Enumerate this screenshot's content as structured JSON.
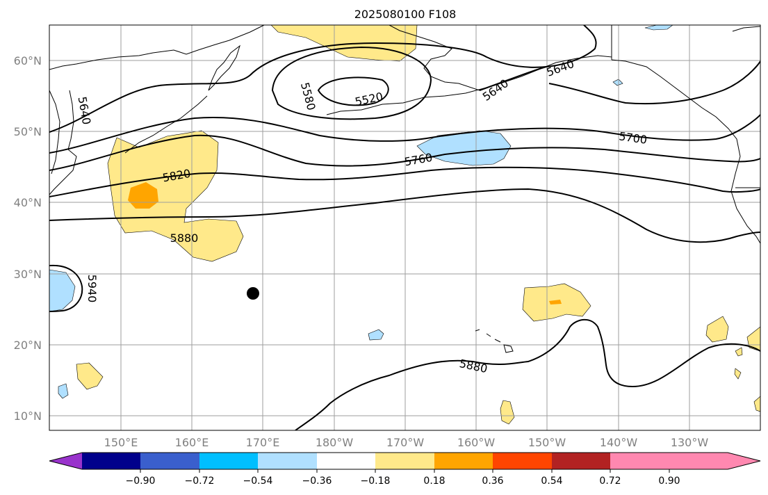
{
  "title": "2025080100 F108",
  "lat_labels": [
    "60°N",
    "50°N",
    "40°N",
    "30°N",
    "20°N",
    "10°N"
  ],
  "lon_labels": [
    "150°E",
    "160°E",
    "170°E",
    "180°W",
    "170°W",
    "160°W",
    "150°W",
    "140°W",
    "130°W"
  ],
  "contour_labels": [
    "5520",
    "5580",
    "5640",
    "5640",
    "5640",
    "5700",
    "5760",
    "5820",
    "5880",
    "5880",
    "5940"
  ],
  "colorbar": {
    "ticks": [
      "−0.90",
      "−0.72",
      "−0.54",
      "−0.36",
      "−0.18",
      "0.18",
      "0.36",
      "0.54",
      "0.72",
      "0.90"
    ],
    "colors": [
      "#9933cc",
      "#00008b",
      "#3a5fcd",
      "#00bfff",
      "#b0e0ff",
      "#ffffff",
      "#ffe98a",
      "#ffa500",
      "#ff4500",
      "#b22222",
      "#ff88b0"
    ]
  }
}
